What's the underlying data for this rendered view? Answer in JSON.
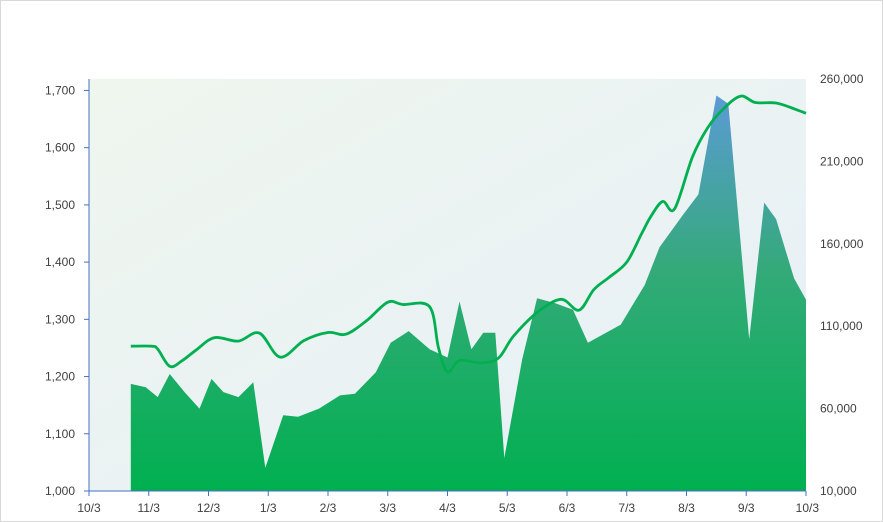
{
  "chart_data": {
    "type": "area",
    "title": "",
    "x_ticks": [
      "10/3",
      "11/3",
      "12/3",
      "1/3",
      "2/3",
      "3/3",
      "4/3",
      "5/3",
      "6/3",
      "7/3",
      "8/3",
      "9/3",
      "10/3"
    ],
    "y_left": {
      "min": 1000,
      "max": 1720,
      "ticks": [
        1000,
        1100,
        1200,
        1300,
        1400,
        1500,
        1600,
        1700
      ],
      "tick_labels": [
        "1,000",
        "1,100",
        "1,200",
        "1,300",
        "1,400",
        "1,500",
        "1,600",
        "1,700"
      ]
    },
    "y_right": {
      "min": 10000,
      "max": 260000,
      "ticks": [
        10000,
        60000,
        110000,
        160000,
        210000,
        260000
      ],
      "tick_labels": [
        "10,000",
        "60,000",
        "110,000",
        "160,000",
        "210,000",
        "260,000"
      ]
    },
    "grid": false,
    "series": [
      {
        "type": "area",
        "axis": "right",
        "x": [
          0.7,
          0.95,
          1.15,
          1.35,
          1.6,
          1.85,
          2.05,
          2.25,
          2.5,
          2.75,
          2.95,
          3.25,
          3.5,
          3.85,
          4.2,
          4.45,
          4.8,
          5.05,
          5.35,
          5.7,
          6.0,
          6.2,
          6.4,
          6.6,
          6.8,
          6.95,
          7.25,
          7.5,
          7.8,
          8.1,
          8.35,
          8.55,
          8.9,
          9.3,
          9.55,
          9.95,
          10.2,
          10.5,
          10.7,
          11.05,
          11.3,
          11.5,
          11.8,
          12.0
        ],
        "y": [
          75000,
          73000,
          67000,
          81000,
          70000,
          60000,
          78000,
          70000,
          67000,
          76000,
          24000,
          56000,
          55000,
          60000,
          68000,
          69000,
          82000,
          100000,
          107000,
          96000,
          91000,
          125000,
          96000,
          106000,
          106000,
          30000,
          90000,
          127000,
          124000,
          120000,
          100000,
          104000,
          111000,
          135000,
          158000,
          178000,
          190000,
          250000,
          245000,
          102000,
          185000,
          175000,
          139000,
          126000
        ]
      },
      {
        "type": "line",
        "axis": "left",
        "x": [
          0.7,
          1.05,
          1.15,
          1.35,
          1.55,
          1.8,
          2.1,
          2.5,
          2.85,
          3.2,
          3.6,
          4.0,
          4.3,
          4.65,
          5.0,
          5.25,
          5.7,
          5.85,
          6.0,
          6.2,
          6.55,
          6.85,
          7.1,
          7.5,
          7.9,
          8.2,
          8.45,
          8.7,
          9.0,
          9.25,
          9.4,
          9.6,
          9.8,
          10.1,
          10.35,
          10.6,
          10.9,
          11.15,
          11.5,
          11.8,
          12.0
        ],
        "y": [
          1253,
          1253,
          1248,
          1218,
          1227,
          1247,
          1268,
          1262,
          1276,
          1234,
          1263,
          1277,
          1274,
          1298,
          1330,
          1326,
          1322,
          1250,
          1208,
          1228,
          1224,
          1232,
          1270,
          1312,
          1335,
          1316,
          1352,
          1373,
          1400,
          1450,
          1479,
          1506,
          1493,
          1584,
          1634,
          1666,
          1690,
          1679,
          1678,
          1668,
          1660
        ]
      }
    ]
  }
}
